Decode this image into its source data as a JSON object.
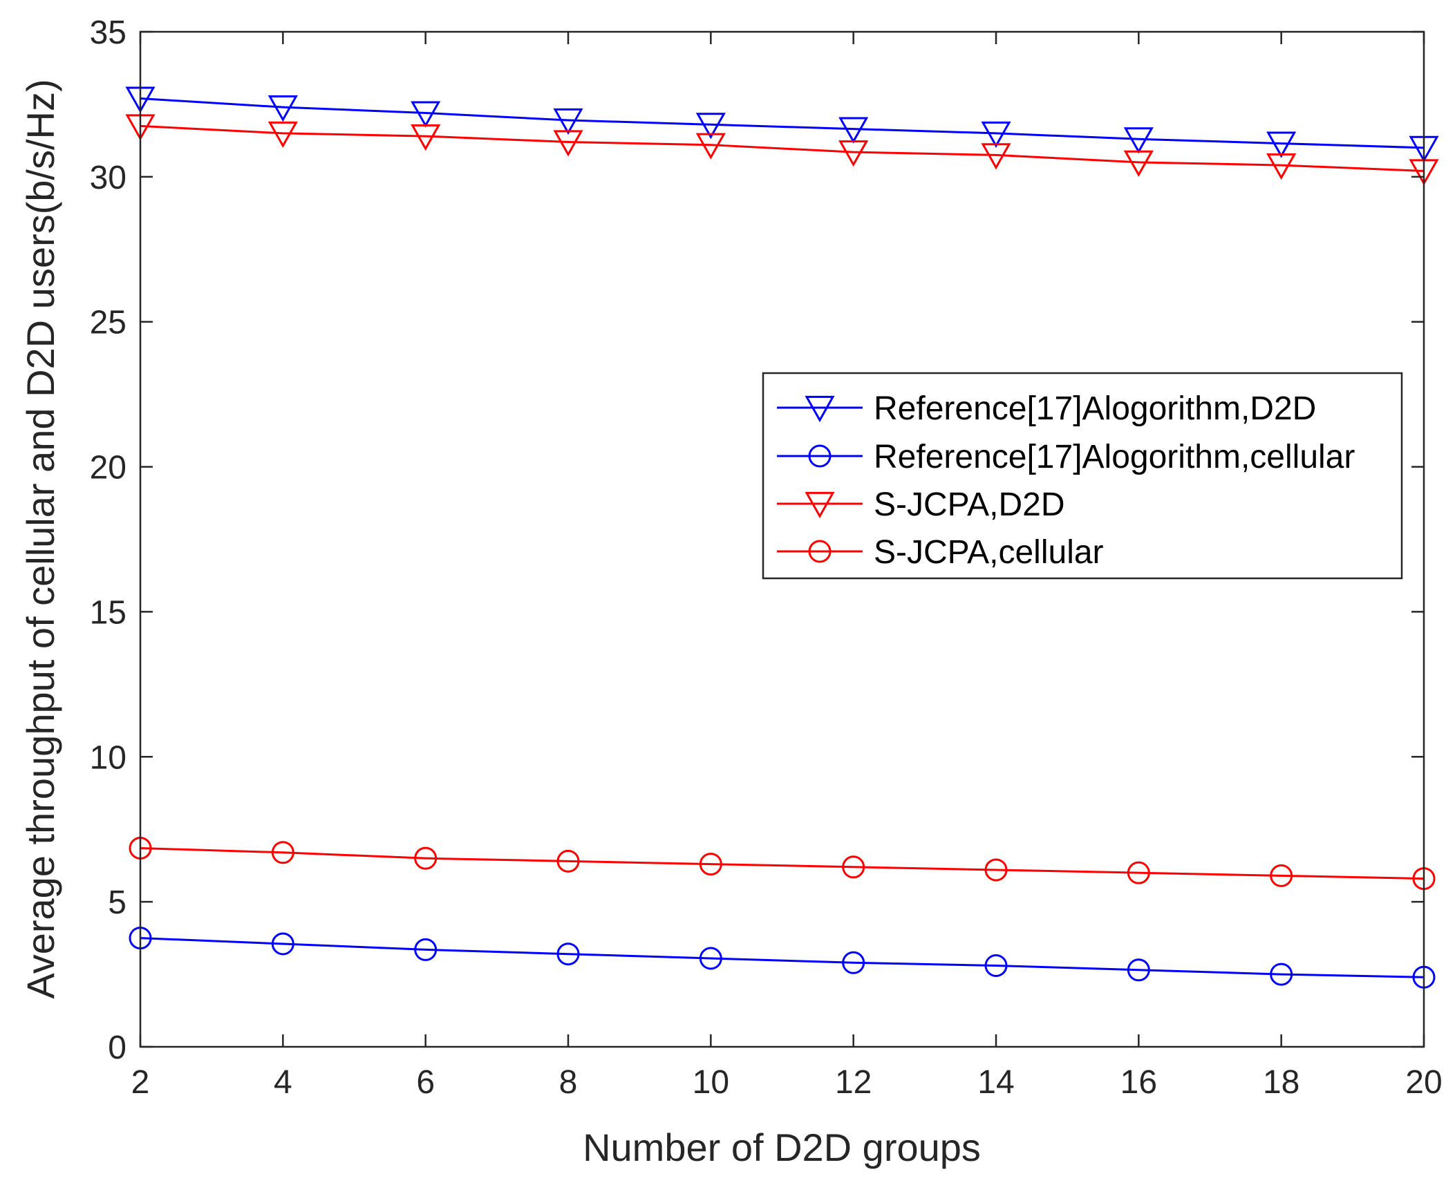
{
  "chart_data": {
    "type": "line",
    "title": "",
    "xlabel": "Number of D2D groups",
    "ylabel": "Average throughput of cellular and D2D users(b/s/Hz)",
    "x": [
      2,
      4,
      6,
      8,
      10,
      12,
      14,
      16,
      18,
      20
    ],
    "xlim": [
      2,
      20
    ],
    "ylim": [
      0,
      35
    ],
    "xticks": [
      2,
      4,
      6,
      8,
      10,
      12,
      14,
      16,
      18,
      20
    ],
    "yticks": [
      0,
      5,
      10,
      15,
      20,
      25,
      30,
      35
    ],
    "grid": false,
    "legend_position": "center-right",
    "series": [
      {
        "name": "Reference[17]Alogorithm,D2D",
        "color": "#0000FF",
        "marker": "triangle-down",
        "values": [
          32.7,
          32.4,
          32.2,
          31.95,
          31.8,
          31.65,
          31.5,
          31.3,
          31.15,
          31.0
        ]
      },
      {
        "name": "Reference[17]Alogorithm,cellular",
        "color": "#0000FF",
        "marker": "circle",
        "values": [
          3.75,
          3.55,
          3.35,
          3.2,
          3.05,
          2.9,
          2.8,
          2.65,
          2.5,
          2.4
        ]
      },
      {
        "name": "S-JCPA,D2D",
        "color": "#FF0000",
        "marker": "triangle-down",
        "values": [
          31.75,
          31.5,
          31.4,
          31.2,
          31.1,
          30.85,
          30.75,
          30.5,
          30.4,
          30.2
        ]
      },
      {
        "name": "S-JCPA,cellular",
        "color": "#FF0000",
        "marker": "circle",
        "values": [
          6.85,
          6.7,
          6.5,
          6.4,
          6.3,
          6.2,
          6.1,
          6.0,
          5.9,
          5.8
        ]
      }
    ]
  }
}
